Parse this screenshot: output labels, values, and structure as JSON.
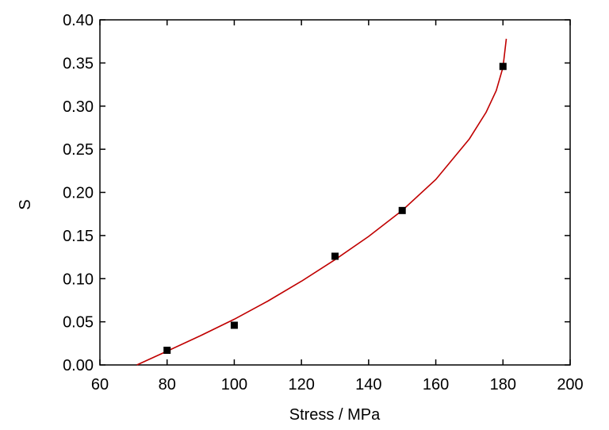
{
  "chart_data": {
    "type": "scatter",
    "xlabel": "Stress / MPa",
    "ylabel": "S",
    "xlim": [
      60,
      200
    ],
    "ylim": [
      0.0,
      0.4
    ],
    "x_ticks": [
      60,
      80,
      100,
      120,
      140,
      160,
      180,
      200
    ],
    "y_ticks": [
      0.0,
      0.05,
      0.1,
      0.15,
      0.2,
      0.25,
      0.3,
      0.35,
      0.4
    ],
    "x_tick_labels": [
      "60",
      "80",
      "100",
      "120",
      "140",
      "160",
      "180",
      "200"
    ],
    "y_tick_labels": [
      "0.00",
      "0.05",
      "0.10",
      "0.15",
      "0.20",
      "0.25",
      "0.30",
      "0.35",
      "0.40"
    ],
    "grid": false,
    "series": [
      {
        "kind": "points",
        "marker": "square",
        "color": "#000000",
        "x": [
          80,
          100,
          130,
          150,
          180
        ],
        "y": [
          0.017,
          0.046,
          0.126,
          0.179,
          0.346
        ]
      },
      {
        "kind": "fit-line",
        "color": "#c00000",
        "x": [
          71,
          80,
          90,
          100,
          110,
          120,
          130,
          140,
          150,
          160,
          170,
          175,
          178,
          180,
          181
        ],
        "y": [
          0.0,
          0.016,
          0.034,
          0.053,
          0.074,
          0.097,
          0.122,
          0.149,
          0.179,
          0.215,
          0.262,
          0.293,
          0.318,
          0.345,
          0.378
        ]
      }
    ]
  }
}
